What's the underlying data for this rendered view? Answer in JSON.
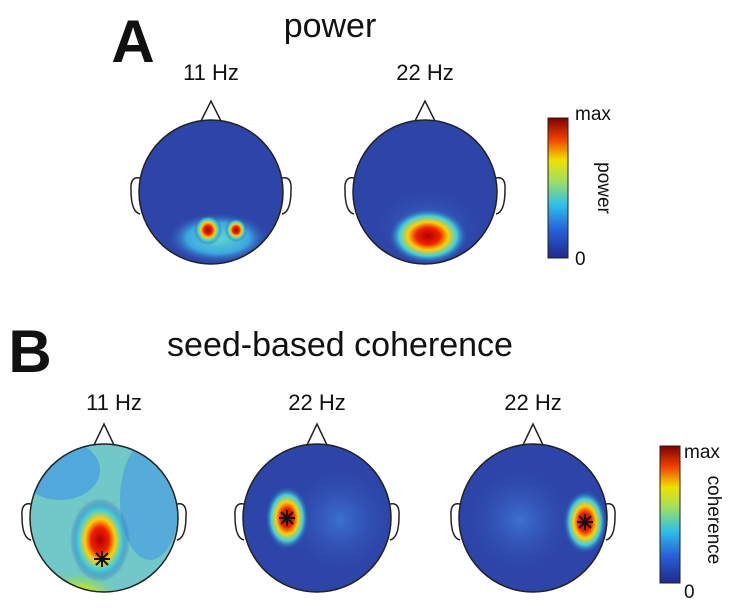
{
  "panel_a": {
    "label": "A",
    "title": "power",
    "maps": [
      "11 Hz",
      "22 Hz"
    ],
    "colorbar": {
      "max": "max",
      "label": "power",
      "min": 0
    }
  },
  "panel_b": {
    "label": "B",
    "title": "seed-based coherence",
    "maps": [
      "11 Hz",
      "22 Hz",
      "22 Hz"
    ],
    "colorbar": {
      "max": "max",
      "label": "coherence",
      "min": 0
    }
  }
}
